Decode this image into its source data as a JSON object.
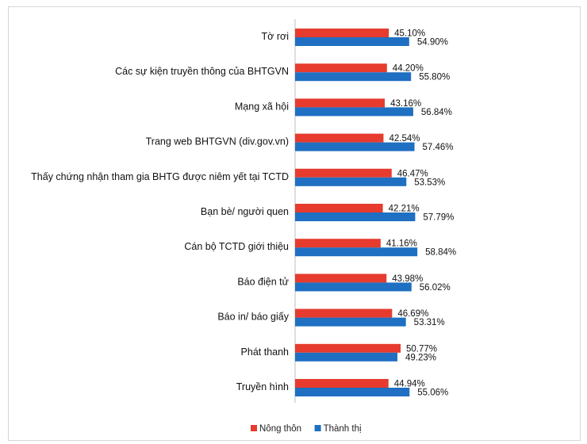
{
  "chart_data": {
    "type": "bar",
    "orientation": "horizontal",
    "categories": [
      "Tờ rơi",
      "Các sự kiện truyền thông của BHTGVN",
      "Mạng xã hội",
      "Trang web BHTGVN (div.gov.vn)",
      "Thấy chứng nhận tham gia BHTG  được niêm  yết tại TCTD",
      "Bạn bè/ người quen",
      "Cán bộ TCTD giới thiệu",
      "Báo điện tử",
      "Báo in/ báo giấy",
      "Phát thanh",
      "Truyền hình"
    ],
    "series": [
      {
        "name": "Nông thôn",
        "color": "#e63b2e",
        "values": [
          45.1,
          44.2,
          43.16,
          42.54,
          46.47,
          42.21,
          41.16,
          43.98,
          46.69,
          50.77,
          44.94
        ],
        "labels": [
          "45.10%",
          "44.20%",
          "43.16%",
          "42.54%",
          "46.47%",
          "42.21%",
          "41.16%",
          "43.98%",
          "46.69%",
          "50.77%",
          "44.94%"
        ]
      },
      {
        "name": "Thành thị",
        "color": "#1f6fc2",
        "values": [
          54.9,
          55.8,
          56.84,
          57.46,
          53.53,
          57.79,
          58.84,
          56.02,
          53.31,
          49.23,
          55.06
        ],
        "labels": [
          "54.90%",
          "55.80%",
          "56.84%",
          "57.46%",
          "53.53%",
          "57.79%",
          "58.84%",
          "56.02%",
          "53.31%",
          "49.23%",
          "55.06%"
        ]
      }
    ],
    "xlim": [
      0,
      100
    ],
    "grid": false,
    "legend_position": "bottom"
  }
}
